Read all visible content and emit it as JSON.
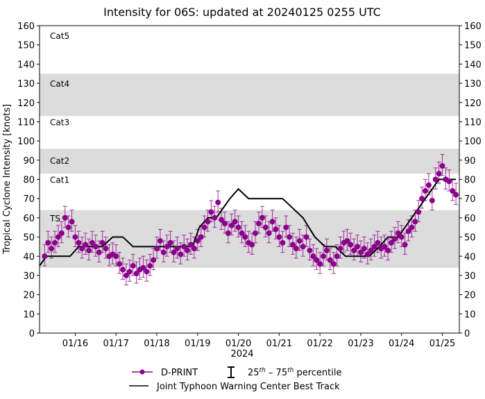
{
  "chart_data": {
    "type": "line",
    "title": "Intensity for 06S: updated at 20240125 0255 UTC",
    "xlabel": "2024",
    "ylabel": "Tropical Cyclone Intensity [knots]",
    "xlim": [
      "01/15 03Z",
      "01/25 10Z"
    ],
    "ylim": [
      0,
      160
    ],
    "yticks": [
      0,
      10,
      20,
      30,
      40,
      50,
      60,
      70,
      80,
      90,
      100,
      110,
      120,
      130,
      140,
      150,
      160
    ],
    "xticks": [
      {
        "t": "01/16 00Z",
        "label": "01/16"
      },
      {
        "t": "01/17 00Z",
        "label": "01/17"
      },
      {
        "t": "01/18 00Z",
        "label": "01/18"
      },
      {
        "t": "01/19 00Z",
        "label": "01/19"
      },
      {
        "t": "01/20 00Z",
        "label": "01/20"
      },
      {
        "t": "01/21 00Z",
        "label": "01/21"
      },
      {
        "t": "01/22 00Z",
        "label": "01/22"
      },
      {
        "t": "01/23 00Z",
        "label": "01/23"
      },
      {
        "t": "01/24 00Z",
        "label": "01/24"
      },
      {
        "t": "01/25 00Z",
        "label": "01/25"
      }
    ],
    "grid": false,
    "category_bands": [
      {
        "label": "TS",
        "range": [
          34,
          64
        ],
        "shaded": true,
        "label_at": 60
      },
      {
        "label": "Cat1",
        "range": [
          64,
          83
        ],
        "shaded": false,
        "label_at": 80
      },
      {
        "label": "Cat2",
        "range": [
          83,
          96
        ],
        "shaded": true,
        "label_at": 90
      },
      {
        "label": "Cat3",
        "range": [
          96,
          113
        ],
        "shaded": false,
        "label_at": 110
      },
      {
        "label": "Cat4",
        "range": [
          113,
          135
        ],
        "shaded": true,
        "label_at": 130
      },
      {
        "label": "Cat5",
        "range": [
          135,
          160
        ],
        "shaded": false,
        "label_at": 155
      }
    ],
    "colors": {
      "dprint": "#8b008b",
      "best_track": "#000000",
      "band": "#dcdcdc"
    },
    "legend": {
      "placement": "bottom",
      "dprint": "D-PRINT",
      "percentile_base1": "25",
      "percentile_sup1": "th",
      "percentile_mid": " – 75",
      "percentile_sup2": "th",
      "percentile_end": " percentile",
      "best_track": "Joint Typhoon Warning Center Best Track"
    },
    "series": [
      {
        "name": "D-PRINT",
        "t": [
          "01/15 06Z",
          "01/15 08Z",
          "01/15 10Z",
          "01/15 12Z",
          "01/15 14Z",
          "01/15 16Z",
          "01/15 18Z",
          "01/15 20Z",
          "01/15 22Z",
          "01/16 00Z",
          "01/16 02Z",
          "01/16 04Z",
          "01/16 06Z",
          "01/16 08Z",
          "01/16 10Z",
          "01/16 12Z",
          "01/16 14Z",
          "01/16 16Z",
          "01/16 18Z",
          "01/16 20Z",
          "01/16 22Z",
          "01/17 00Z",
          "01/17 02Z",
          "01/17 04Z",
          "01/17 06Z",
          "01/17 08Z",
          "01/17 10Z",
          "01/17 12Z",
          "01/17 14Z",
          "01/17 16Z",
          "01/17 18Z",
          "01/17 20Z",
          "01/17 22Z",
          "01/18 00Z",
          "01/18 02Z",
          "01/18 04Z",
          "01/18 06Z",
          "01/18 08Z",
          "01/18 10Z",
          "01/18 12Z",
          "01/18 14Z",
          "01/18 16Z",
          "01/18 18Z",
          "01/18 20Z",
          "01/18 22Z",
          "01/19 00Z",
          "01/19 02Z",
          "01/19 04Z",
          "01/19 06Z",
          "01/19 08Z",
          "01/19 10Z",
          "01/19 12Z",
          "01/19 14Z",
          "01/19 16Z",
          "01/19 18Z",
          "01/19 20Z",
          "01/19 22Z",
          "01/20 00Z",
          "01/20 02Z",
          "01/20 04Z",
          "01/20 06Z",
          "01/20 08Z",
          "01/20 10Z",
          "01/20 12Z",
          "01/20 14Z",
          "01/20 16Z",
          "01/20 18Z",
          "01/20 20Z",
          "01/20 22Z",
          "01/21 00Z",
          "01/21 02Z",
          "01/21 04Z",
          "01/21 06Z",
          "01/21 08Z",
          "01/21 10Z",
          "01/21 12Z",
          "01/21 14Z",
          "01/21 16Z",
          "01/21 18Z",
          "01/21 20Z",
          "01/21 22Z",
          "01/22 00Z",
          "01/22 02Z",
          "01/22 04Z",
          "01/22 06Z",
          "01/22 08Z",
          "01/22 10Z",
          "01/22 12Z",
          "01/22 14Z",
          "01/22 16Z",
          "01/22 18Z",
          "01/22 20Z",
          "01/22 22Z",
          "01/23 00Z",
          "01/23 02Z",
          "01/23 04Z",
          "01/23 06Z",
          "01/23 08Z",
          "01/23 10Z",
          "01/23 12Z",
          "01/23 14Z",
          "01/23 16Z",
          "01/23 18Z",
          "01/23 20Z",
          "01/23 22Z",
          "01/24 00Z",
          "01/24 02Z",
          "01/24 04Z",
          "01/24 06Z",
          "01/24 08Z",
          "01/24 10Z",
          "01/24 12Z",
          "01/24 14Z",
          "01/24 16Z",
          "01/24 18Z",
          "01/24 20Z",
          "01/24 22Z",
          "01/25 00Z",
          "01/25 02Z",
          "01/25 04Z",
          "01/25 06Z",
          "01/25 08Z"
        ],
        "values": [
          40,
          47,
          44,
          47,
          50,
          52,
          60,
          55,
          58,
          50,
          47,
          44,
          46,
          43,
          47,
          45,
          42,
          47,
          44,
          40,
          41,
          40,
          36,
          33,
          30,
          32,
          35,
          31,
          33,
          34,
          32,
          35,
          38,
          44,
          48,
          42,
          45,
          47,
          42,
          44,
          41,
          45,
          43,
          46,
          44,
          48,
          50,
          55,
          58,
          63,
          60,
          68,
          59,
          57,
          52,
          56,
          58,
          55,
          52,
          50,
          47,
          46,
          52,
          57,
          60,
          55,
          52,
          58,
          54,
          50,
          47,
          55,
          50,
          46,
          44,
          48,
          45,
          50,
          43,
          40,
          38,
          36,
          40,
          43,
          38,
          36,
          40,
          44,
          47,
          48,
          46,
          43,
          45,
          42,
          44,
          41,
          43,
          45,
          47,
          44,
          45,
          43,
          47,
          49,
          52,
          50,
          46,
          53,
          55,
          58,
          63,
          70,
          74,
          77,
          69,
          80,
          83,
          87,
          80,
          79,
          74,
          72
        ],
        "p25": [
          35,
          42,
          39,
          42,
          45,
          47,
          55,
          50,
          53,
          45,
          42,
          39,
          41,
          38,
          42,
          40,
          37,
          42,
          39,
          35,
          36,
          35,
          31,
          28,
          25,
          27,
          30,
          26,
          28,
          29,
          27,
          30,
          33,
          39,
          43,
          37,
          40,
          42,
          37,
          39,
          36,
          40,
          38,
          41,
          39,
          43,
          45,
          50,
          53,
          58,
          55,
          63,
          54,
          52,
          47,
          51,
          53,
          50,
          47,
          45,
          42,
          41,
          47,
          52,
          55,
          50,
          47,
          53,
          49,
          45,
          42,
          50,
          45,
          41,
          39,
          43,
          40,
          45,
          38,
          35,
          33,
          31,
          35,
          38,
          33,
          31,
          35,
          39,
          42,
          43,
          41,
          38,
          40,
          37,
          39,
          36,
          38,
          40,
          42,
          39,
          40,
          38,
          42,
          44,
          47,
          45,
          41,
          48,
          50,
          53,
          58,
          65,
          69,
          72,
          64,
          75,
          78,
          82,
          75,
          74,
          69,
          67
        ],
        "p75": [
          46,
          53,
          50,
          53,
          56,
          58,
          66,
          61,
          64,
          56,
          53,
          50,
          52,
          49,
          53,
          51,
          48,
          53,
          50,
          46,
          47,
          46,
          42,
          39,
          36,
          38,
          41,
          37,
          39,
          40,
          38,
          41,
          44,
          50,
          54,
          48,
          51,
          53,
          48,
          50,
          47,
          51,
          49,
          52,
          50,
          54,
          56,
          61,
          64,
          69,
          66,
          74,
          65,
          63,
          58,
          62,
          64,
          61,
          58,
          56,
          53,
          52,
          58,
          63,
          66,
          61,
          58,
          64,
          60,
          56,
          53,
          61,
          56,
          52,
          50,
          54,
          51,
          56,
          49,
          46,
          44,
          42,
          46,
          49,
          44,
          42,
          46,
          50,
          53,
          54,
          52,
          49,
          51,
          48,
          50,
          47,
          49,
          51,
          53,
          50,
          51,
          49,
          53,
          55,
          58,
          56,
          52,
          59,
          61,
          64,
          69,
          76,
          80,
          83,
          75,
          86,
          89,
          93,
          86,
          85,
          80,
          78
        ]
      },
      {
        "name": "Joint Typhoon Warning Center Best Track",
        "t": [
          "01/15 03Z",
          "01/15 07Z",
          "01/15 21Z",
          "01/16 02Z",
          "01/16 16Z",
          "01/16 22Z",
          "01/17 04Z",
          "01/17 10Z",
          "01/18 21Z",
          "01/19 01Z",
          "01/19 06Z",
          "01/19 11Z",
          "01/19 19Z",
          "01/20 00Z",
          "01/20 06Z",
          "01/21 02Z",
          "01/21 14Z",
          "01/21 21Z",
          "01/22 03Z",
          "01/22 09Z",
          "01/22 15Z",
          "01/23 05Z",
          "01/23 11Z",
          "01/23 16Z",
          "01/23 22Z",
          "01/24 22Z",
          "01/25 08Z"
        ],
        "values": [
          35,
          40,
          40,
          45,
          45,
          50,
          50,
          45,
          45,
          55,
          60,
          60,
          70,
          75,
          70,
          70,
          60,
          50,
          45,
          45,
          40,
          40,
          45,
          50,
          50,
          80,
          80
        ]
      }
    ]
  }
}
